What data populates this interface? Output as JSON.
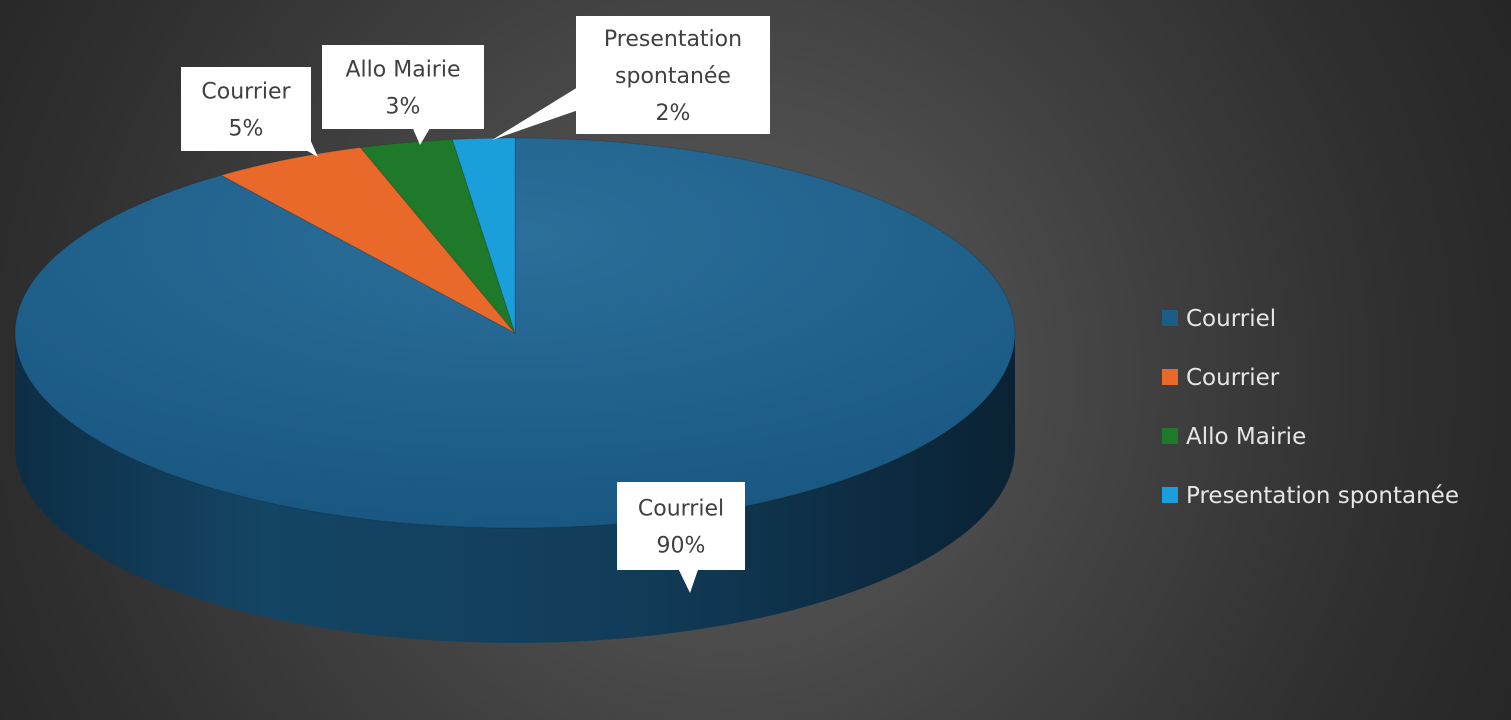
{
  "chart_data": {
    "type": "pie",
    "title": "",
    "categories": [
      "Courriel",
      "Courrier",
      "Allo Mairie",
      "Presentation spontanée"
    ],
    "values": [
      90,
      5,
      3,
      2
    ],
    "data_labels": [
      {
        "category": "Courriel",
        "value": "90%"
      },
      {
        "category": "Courrier",
        "value": "5%"
      },
      {
        "category": "Allo Mairie",
        "value": "3%"
      },
      {
        "category": "Presentation spontanée",
        "value": "2%"
      }
    ],
    "colors": [
      "#1b5d87",
      "#e8692a",
      "#1e7a2a",
      "#1a9fdb"
    ],
    "legend": {
      "placement": "right",
      "entries": [
        "Courriel",
        "Courrier",
        "Allo Mairie",
        "Presentation spontanée"
      ]
    },
    "style": "3d-pie"
  }
}
